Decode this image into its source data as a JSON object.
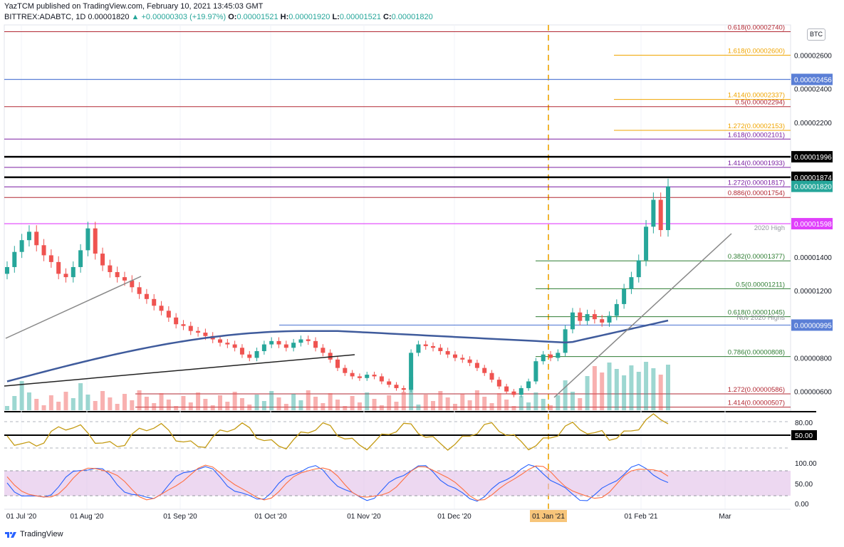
{
  "header": {
    "publisher_line": "YazTCM published on TradingView.com, February 10, 2021 13:45:03 GMT",
    "symbol": "BITTREX:ADABTC, 1D",
    "last": "0.00001820",
    "change": "▲ +0.00000303 (+19.97%)",
    "o_label": "O:",
    "o_val": "0.00001521",
    "h_label": "H:",
    "h_val": "0.00001920",
    "l_label": "L:",
    "l_val": "0.00001521",
    "c_label": "C:",
    "c_val": "0.00001820"
  },
  "currency_badge": "BTC",
  "footer": {
    "brand": "TradingView"
  },
  "colors": {
    "up": "#26a69a",
    "down": "#ef5350",
    "ma": "#3f5b9c",
    "fib_red": "#b22833",
    "fib_orange": "#f0a500",
    "fib_purple": "#7b1fa2",
    "fib_green": "#2e7d32",
    "magenta": "#e040fb",
    "blue_level": "#5b7fd6",
    "rsi": "#c49a12",
    "stoch_k": "#2962ff",
    "stoch_d": "#ff7043"
  },
  "chart_data": {
    "type": "candlestick",
    "symbol": "BITTREX:ADABTC",
    "interval": "1D",
    "ylim": [
      4.8e-06,
      2.78e-05
    ],
    "y_ticks": [
      "0.00002600",
      "0.00002400",
      "0.00002200",
      "0.00001400",
      "0.00001200",
      "0.00000800",
      "0.00000600"
    ],
    "x_ticks": [
      "01 Jul '20",
      "01 Aug '20",
      "01 Sep '20",
      "01 Oct '20",
      "01 Nov '20",
      "01 Dec '20",
      "01 Jan '21",
      "01 Feb '21",
      "Mar"
    ],
    "highlighted_x_tick": "01 Jan '21",
    "price_tags": [
      {
        "label": "0.00002456",
        "color": "#5b7fd6",
        "value": 2.456e-05
      },
      {
        "label": "0.00001996",
        "color": "#000000",
        "value": 1.996e-05
      },
      {
        "label": "0.00001874",
        "color": "#000000",
        "value": 1.874e-05
      },
      {
        "label": "0.00001820",
        "color": "#26a69a",
        "value": 1.82e-05
      },
      {
        "label": "0.00001598",
        "color": "#e040fb",
        "value": 1.598e-05
      },
      {
        "label": "0.00000995",
        "color": "#5b7fd6",
        "value": 9.95e-06
      }
    ],
    "fib_levels": [
      {
        "label": "0.618(0.00002740)",
        "value": 2.74e-05,
        "color": "#b22833",
        "full": true
      },
      {
        "label": "1.618(0.00002600)",
        "value": 2.6e-05,
        "color": "#f0a500",
        "full": false
      },
      {
        "label": "1.414(0.00002337)",
        "value": 2.337e-05,
        "color": "#f0a500",
        "full": false
      },
      {
        "label": "0.5(0.00002294)",
        "value": 2.294e-05,
        "color": "#b22833",
        "full": true
      },
      {
        "label": "1.272(0.00002153)",
        "value": 2.153e-05,
        "color": "#f0a500",
        "full": false
      },
      {
        "label": "1.618(0.00002101)",
        "value": 2.101e-05,
        "color": "#7b1fa2",
        "full": true
      },
      {
        "label": "1.414(0.00001933)",
        "value": 1.933e-05,
        "color": "#7b1fa2",
        "full": true
      },
      {
        "label": "1.272(0.00001817)",
        "value": 1.817e-05,
        "color": "#7b1fa2",
        "full": true
      },
      {
        "label": "0.886(0.00001754)",
        "value": 1.754e-05,
        "color": "#b22833",
        "full": true
      },
      {
        "label": "0.382(0.00001377)",
        "value": 1.377e-05,
        "color": "#2e7d32",
        "full": false
      },
      {
        "label": "0.5(0.00001211)",
        "value": 1.211e-05,
        "color": "#2e7d32",
        "full": false
      },
      {
        "label": "0.618(0.00001045)",
        "value": 1.045e-05,
        "color": "#2e7d32",
        "full": false
      },
      {
        "label": "0.786(0.00000808)",
        "value": 8.08e-06,
        "color": "#2e7d32",
        "full": false
      },
      {
        "label": "1.272(0.00000586)",
        "value": 5.86e-06,
        "color": "#b22833",
        "full": false
      },
      {
        "label": "1.414(0.00000507)",
        "value": 5.07e-06,
        "color": "#b22833",
        "full": false
      }
    ],
    "annotations": [
      "2020 High",
      "Nov 2020 Highs"
    ],
    "ohlc_close_path": [
      1.34e-05,
      1.43e-05,
      1.5e-05,
      1.55e-05,
      1.47e-05,
      1.41e-05,
      1.37e-05,
      1.3e-05,
      1.28e-05,
      1.34e-05,
      1.44e-05,
      1.57e-05,
      1.42e-05,
      1.35e-05,
      1.31e-05,
      1.28e-05,
      1.26e-05,
      1.22e-05,
      1.18e-05,
      1.15e-05,
      1.11e-05,
      1.08e-05,
      1.04e-05,
      1e-05,
      9.9e-06,
      9.6e-06,
      9.5e-06,
      9.3e-06,
      9.1e-06,
      8.9e-06,
      8.8e-06,
      8.6e-06,
      8.2e-06,
      8e-06,
      8.4e-06,
      8.8e-06,
      9e-06,
      8.8e-06,
      8.6e-06,
      8.9e-06,
      9.1e-06,
      9e-06,
      8.6e-06,
      8.3e-06,
      7.9e-06,
      7.4e-06,
      7.1e-06,
      6.9e-06,
      6.8e-06,
      7e-06,
      6.9e-06,
      6.6e-06,
      6.4e-06,
      6.2e-06,
      6.1e-06,
      8.3e-06,
      8.8e-06,
      8.7e-06,
      8.6e-06,
      8.4e-06,
      8.2e-06,
      8e-06,
      7.9e-06,
      7.7e-06,
      7.4e-06,
      7.1e-06,
      6.7e-06,
      6.3e-06,
      6e-06,
      5.8e-06,
      6.2e-06,
      6.6e-06,
      7.8e-06,
      8.2e-06,
      8e-06,
      8.3e-06,
      9.7e-06,
      1.07e-05,
      1.02e-05,
      1.06e-05,
      1.03e-05,
      1.01e-05,
      1.05e-05,
      1.12e-05,
      1.21e-05,
      1.28e-05,
      1.38e-05,
      1.58e-05,
      1.74e-05,
      1.56e-05,
      1.82e-05
    ],
    "indicators": {
      "ma_line": "200-day moving average (blue)",
      "rsi_levels": [
        "80.00",
        "50.00"
      ],
      "stoch_levels": [
        "100.00",
        "50.00",
        "0.00"
      ]
    }
  }
}
